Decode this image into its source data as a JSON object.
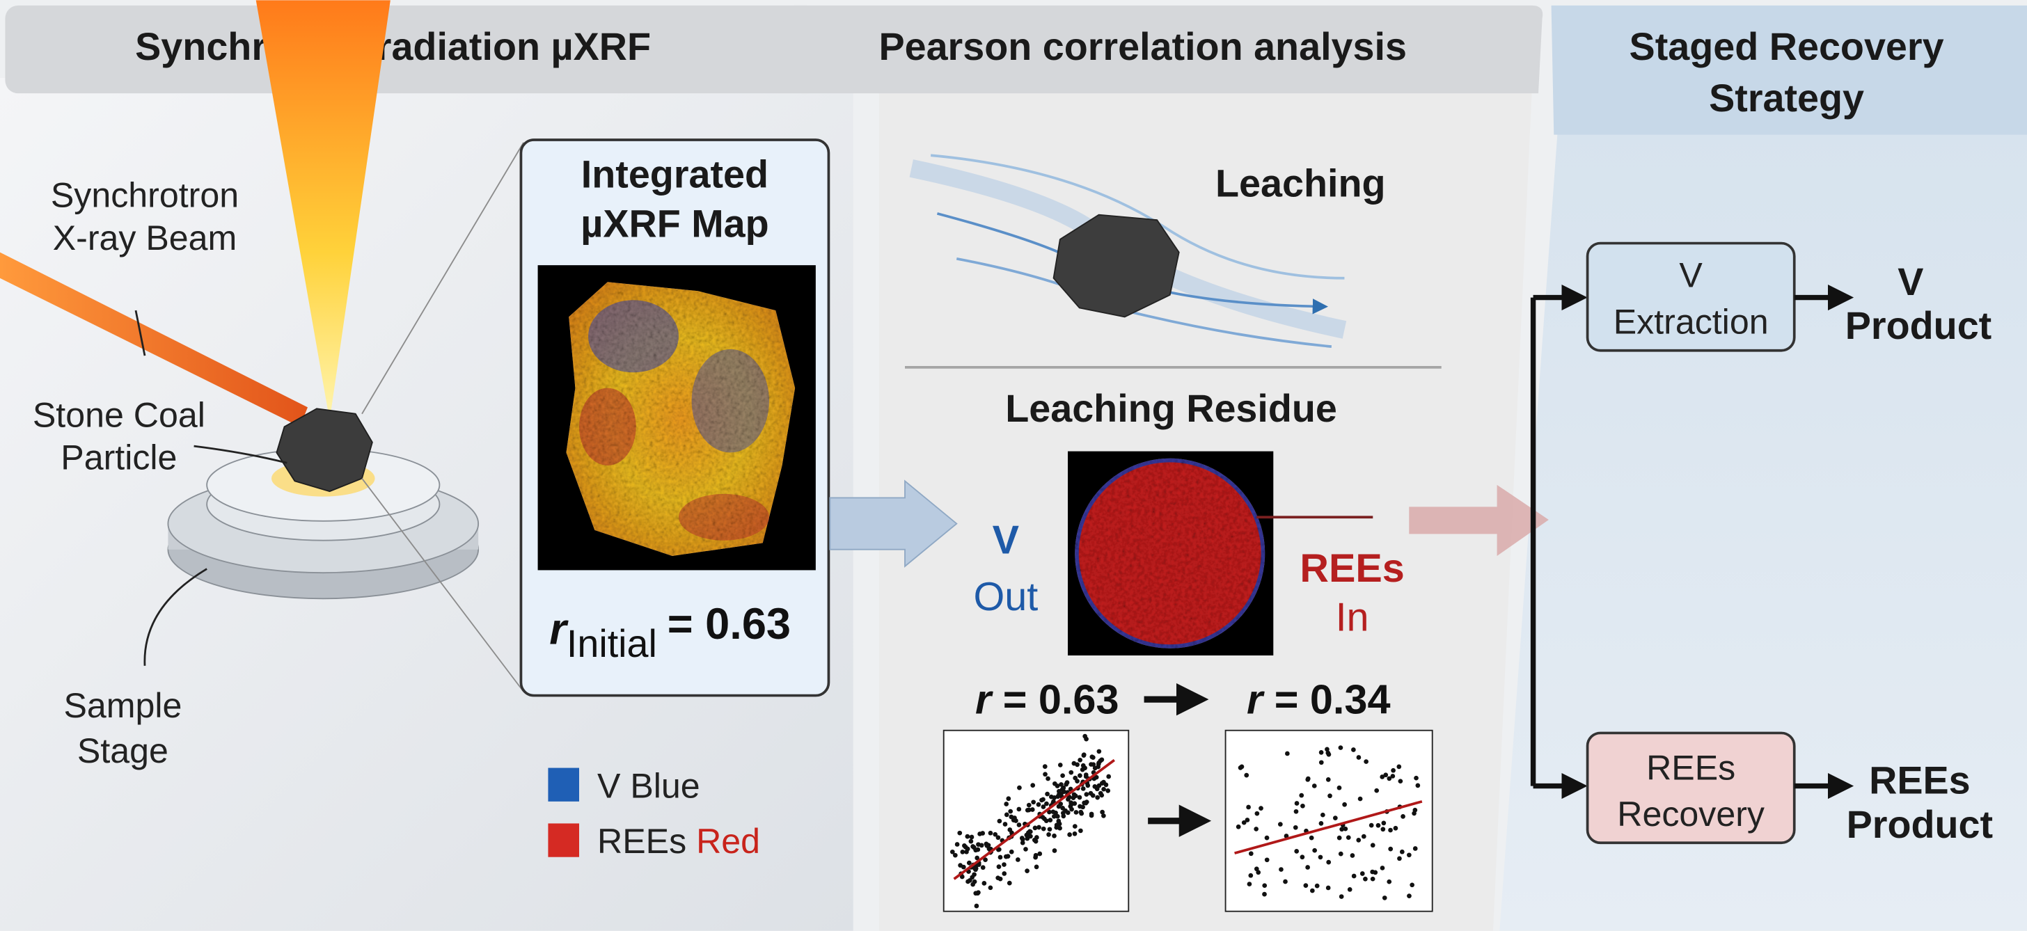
{
  "panels": [
    {
      "title": "Synchrotron radiation µXRF",
      "beam_label": [
        "Synchrotron",
        "X-ray Beam"
      ],
      "particle_label": [
        "Stone Coal",
        "Particle"
      ],
      "stage_label": [
        "Sample",
        "Stage"
      ],
      "map_title": [
        "Integrated",
        "µXRF Map"
      ],
      "r_initial": {
        "symbol": "r",
        "subscript": "Initial",
        "value_text": "= 0.63"
      },
      "legend": [
        {
          "label": "V Blue"
        },
        {
          "label": "REEs ",
          "accent": "Red"
        }
      ]
    },
    {
      "title": "Pearson correlation analysis",
      "leaching": "Leaching",
      "residue_title": "Leaching Residue",
      "v_out": [
        "V",
        "Out"
      ],
      "rees_in": [
        "REEs",
        "In"
      ],
      "r_before": {
        "symbol": "r",
        "value_text": "= 0.63"
      },
      "r_after": {
        "symbol": "r",
        "value_text": "= 0.34"
      }
    },
    {
      "title": [
        "Staged Recovery",
        "Strategy"
      ],
      "v_box": [
        "V",
        "Extraction"
      ],
      "v_product": [
        "V",
        "Product"
      ],
      "rees_box": [
        "REEs",
        "Recovery"
      ],
      "rees_product": [
        "REEs",
        "Product"
      ]
    }
  ]
}
